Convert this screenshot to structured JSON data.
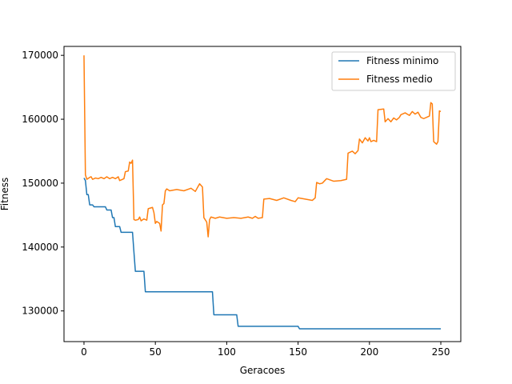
{
  "chart_data": {
    "type": "line",
    "title": "",
    "xlabel": "Geracoes",
    "ylabel": "Fitness",
    "xlim": [
      -14,
      264
    ],
    "ylim": [
      125200,
      171400
    ],
    "xticks": [
      0,
      50,
      100,
      150,
      200,
      250
    ],
    "yticks": [
      130000,
      140000,
      150000,
      160000,
      170000
    ],
    "grid": false,
    "legend": "top-right",
    "series": [
      {
        "name": "Fitness minimo",
        "color": "#1f77b4",
        "points": [
          [
            0,
            150800
          ],
          [
            1,
            150400
          ],
          [
            2,
            148200
          ],
          [
            3,
            148200
          ],
          [
            4,
            146600
          ],
          [
            6,
            146600
          ],
          [
            7,
            146300
          ],
          [
            15,
            146300
          ],
          [
            16,
            145800
          ],
          [
            19,
            145800
          ],
          [
            20,
            144600
          ],
          [
            21,
            144600
          ],
          [
            22,
            143200
          ],
          [
            25,
            143200
          ],
          [
            26,
            142300
          ],
          [
            34,
            142300
          ],
          [
            35,
            139200
          ],
          [
            36,
            136200
          ],
          [
            42,
            136200
          ],
          [
            43,
            133000
          ],
          [
            90,
            133000
          ],
          [
            91,
            129400
          ],
          [
            107,
            129400
          ],
          [
            108,
            127600
          ],
          [
            150,
            127600
          ],
          [
            151,
            127200
          ],
          [
            250,
            127200
          ]
        ]
      },
      {
        "name": "Fitness medio",
        "color": "#ff7f0e",
        "points": [
          [
            0,
            170000
          ],
          [
            1,
            151300
          ],
          [
            2,
            150600
          ],
          [
            4,
            150900
          ],
          [
            5,
            151000
          ],
          [
            6,
            150600
          ],
          [
            8,
            150800
          ],
          [
            10,
            150700
          ],
          [
            12,
            150900
          ],
          [
            14,
            150700
          ],
          [
            16,
            151000
          ],
          [
            18,
            150700
          ],
          [
            20,
            150900
          ],
          [
            22,
            150700
          ],
          [
            24,
            151000
          ],
          [
            25,
            150400
          ],
          [
            27,
            150600
          ],
          [
            28,
            150700
          ],
          [
            29,
            151800
          ],
          [
            31,
            151900
          ],
          [
            32,
            153300
          ],
          [
            33,
            153100
          ],
          [
            34,
            153600
          ],
          [
            35,
            144300
          ],
          [
            36,
            144200
          ],
          [
            38,
            144300
          ],
          [
            39,
            144700
          ],
          [
            40,
            144100
          ],
          [
            42,
            144400
          ],
          [
            44,
            144200
          ],
          [
            45,
            146000
          ],
          [
            48,
            146200
          ],
          [
            49,
            145400
          ],
          [
            50,
            143700
          ],
          [
            51,
            144000
          ],
          [
            53,
            143700
          ],
          [
            54,
            142500
          ],
          [
            55,
            146600
          ],
          [
            56,
            146800
          ],
          [
            57,
            148800
          ],
          [
            58,
            149100
          ],
          [
            60,
            148800
          ],
          [
            65,
            149000
          ],
          [
            70,
            148800
          ],
          [
            75,
            149200
          ],
          [
            78,
            148700
          ],
          [
            80,
            149500
          ],
          [
            81,
            149900
          ],
          [
            83,
            149400
          ],
          [
            84,
            144600
          ],
          [
            86,
            143900
          ],
          [
            87,
            141600
          ],
          [
            88,
            144300
          ],
          [
            89,
            144700
          ],
          [
            92,
            144500
          ],
          [
            95,
            144700
          ],
          [
            100,
            144500
          ],
          [
            105,
            144600
          ],
          [
            110,
            144500
          ],
          [
            115,
            144700
          ],
          [
            118,
            144500
          ],
          [
            120,
            144800
          ],
          [
            122,
            144500
          ],
          [
            125,
            144600
          ],
          [
            126,
            147500
          ],
          [
            130,
            147600
          ],
          [
            135,
            147300
          ],
          [
            140,
            147700
          ],
          [
            145,
            147300
          ],
          [
            148,
            147100
          ],
          [
            150,
            147700
          ],
          [
            155,
            147500
          ],
          [
            160,
            147300
          ],
          [
            162,
            147700
          ],
          [
            163,
            150100
          ],
          [
            165,
            149900
          ],
          [
            167,
            150000
          ],
          [
            170,
            150700
          ],
          [
            175,
            150300
          ],
          [
            180,
            150400
          ],
          [
            184,
            150600
          ],
          [
            185,
            154700
          ],
          [
            188,
            155000
          ],
          [
            190,
            154600
          ],
          [
            192,
            155100
          ],
          [
            193,
            156900
          ],
          [
            195,
            156300
          ],
          [
            197,
            157100
          ],
          [
            199,
            156600
          ],
          [
            200,
            157100
          ],
          [
            201,
            156500
          ],
          [
            203,
            156700
          ],
          [
            205,
            156500
          ],
          [
            206,
            161500
          ],
          [
            210,
            161600
          ],
          [
            211,
            159600
          ],
          [
            213,
            160100
          ],
          [
            215,
            159600
          ],
          [
            217,
            160200
          ],
          [
            219,
            159900
          ],
          [
            221,
            160300
          ],
          [
            222,
            160700
          ],
          [
            225,
            161000
          ],
          [
            228,
            160600
          ],
          [
            230,
            161200
          ],
          [
            232,
            160800
          ],
          [
            234,
            161100
          ],
          [
            236,
            160300
          ],
          [
            238,
            160100
          ],
          [
            240,
            160300
          ],
          [
            242,
            160500
          ],
          [
            243,
            162600
          ],
          [
            244,
            162400
          ],
          [
            245,
            156500
          ],
          [
            247,
            156100
          ],
          [
            248,
            156500
          ],
          [
            249,
            161300
          ],
          [
            250,
            161200
          ]
        ]
      }
    ]
  }
}
